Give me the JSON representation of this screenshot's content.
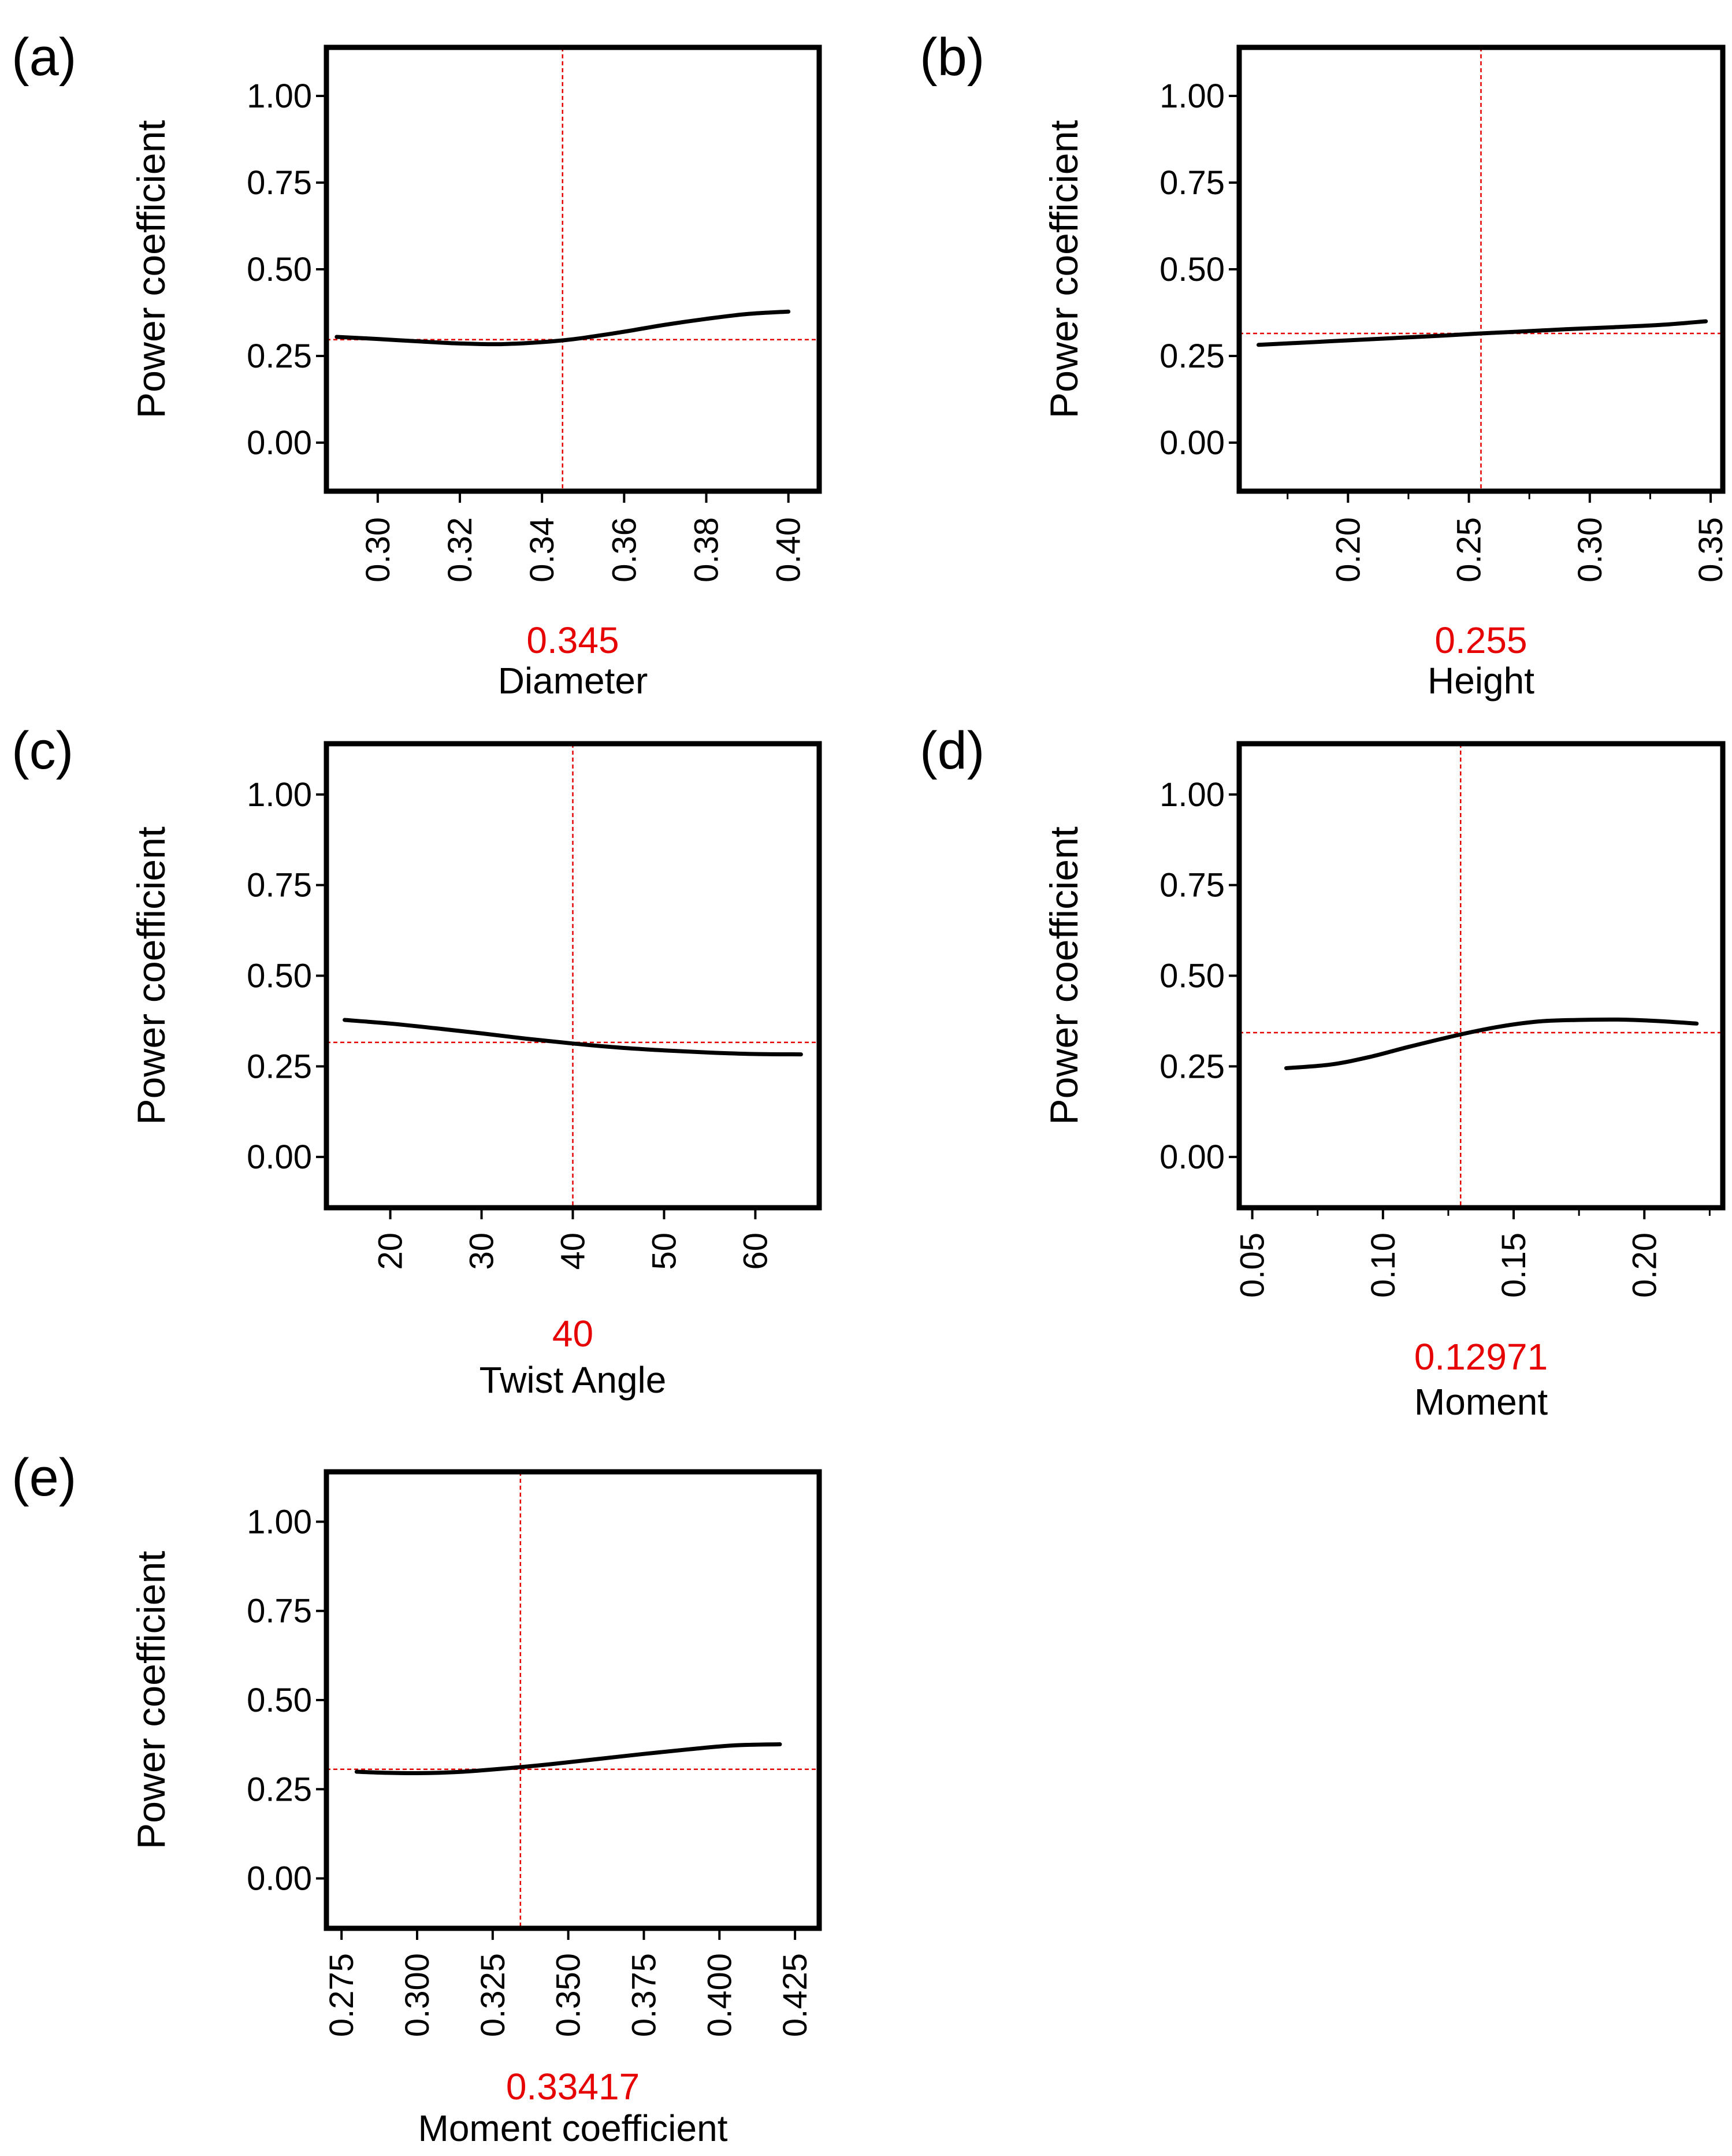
{
  "chart_data": [
    {
      "panel": "(a)",
      "type": "line",
      "ylabel": "Power coefficient",
      "xlabel": "Diameter",
      "xvalue_label": "0.345",
      "xlim": [
        0.2875,
        0.4075
      ],
      "ylim": [
        -0.14,
        1.14
      ],
      "xticks": [
        0.3,
        0.32,
        0.34,
        0.36,
        0.38,
        0.4
      ],
      "xtick_labels": [
        "0.30",
        "0.32",
        "0.34",
        "0.36",
        "0.38",
        "0.40"
      ],
      "yticks": [
        0.0,
        0.25,
        0.5,
        0.75,
        1.0
      ],
      "ytick_labels": [
        "0.00",
        "0.25",
        "0.50",
        "0.75",
        "1.00"
      ],
      "x": [
        0.29,
        0.3,
        0.31,
        0.32,
        0.33,
        0.34,
        0.345,
        0.35,
        0.36,
        0.37,
        0.38,
        0.39,
        0.4
      ],
      "y": [
        0.305,
        0.299,
        0.292,
        0.286,
        0.284,
        0.29,
        0.295,
        0.302,
        0.32,
        0.34,
        0.357,
        0.371,
        0.378
      ],
      "ref_x": 0.345,
      "ref_y": 0.297
    },
    {
      "panel": "(b)",
      "type": "line",
      "ylabel": "Power coefficient",
      "xlabel": "Height",
      "xvalue_label": "0.255",
      "xlim": [
        0.155,
        0.355
      ],
      "ylim": [
        -0.14,
        1.14
      ],
      "xticks": [
        0.2,
        0.25,
        0.3,
        0.35
      ],
      "xtick_labels": [
        "0.20",
        "0.25",
        "0.30",
        "0.35"
      ],
      "minor_xticks": [
        0.175,
        0.225,
        0.275,
        0.325
      ],
      "yticks": [
        0.0,
        0.25,
        0.5,
        0.75,
        1.0
      ],
      "ytick_labels": [
        "0.00",
        "0.25",
        "0.50",
        "0.75",
        "1.00"
      ],
      "x": [
        0.163,
        0.18,
        0.2,
        0.22,
        0.24,
        0.255,
        0.27,
        0.29,
        0.31,
        0.33,
        0.348
      ],
      "y": [
        0.282,
        0.288,
        0.295,
        0.302,
        0.309,
        0.315,
        0.32,
        0.327,
        0.333,
        0.34,
        0.35
      ],
      "ref_x": 0.255,
      "ref_y": 0.315
    },
    {
      "panel": "(c)",
      "type": "line",
      "ylabel": "Power coefficient",
      "xlabel": "Twist Angle",
      "xvalue_label": "40",
      "xlim": [
        13,
        67
      ],
      "ylim": [
        -0.14,
        1.14
      ],
      "xticks": [
        20,
        30,
        40,
        50,
        60
      ],
      "xtick_labels": [
        "20",
        "30",
        "40",
        "50",
        "60"
      ],
      "yticks": [
        0.0,
        0.25,
        0.5,
        0.75,
        1.0
      ],
      "ytick_labels": [
        "0.00",
        "0.25",
        "0.50",
        "0.75",
        "1.00"
      ],
      "x": [
        15,
        20,
        25,
        30,
        35,
        40,
        45,
        50,
        55,
        60,
        65
      ],
      "y": [
        0.378,
        0.368,
        0.355,
        0.341,
        0.326,
        0.313,
        0.302,
        0.294,
        0.288,
        0.284,
        0.283
      ],
      "ref_x": 40,
      "ref_y": 0.316
    },
    {
      "panel": "(d)",
      "type": "line",
      "ylabel": "Power coefficient",
      "xlabel": "Moment",
      "xvalue_label": "0.12971",
      "xlim": [
        0.045,
        0.23
      ],
      "ylim": [
        -0.14,
        1.14
      ],
      "xticks": [
        0.05,
        0.1,
        0.15,
        0.2
      ],
      "xtick_labels": [
        "0.05",
        "0.10",
        "0.15",
        "0.20"
      ],
      "minor_xticks": [
        0.075,
        0.125,
        0.175,
        0.225
      ],
      "yticks": [
        0.0,
        0.25,
        0.5,
        0.75,
        1.0
      ],
      "ytick_labels": [
        "0.00",
        "0.25",
        "0.50",
        "0.75",
        "1.00"
      ],
      "x": [
        0.063,
        0.08,
        0.095,
        0.11,
        0.12971,
        0.145,
        0.16,
        0.175,
        0.19,
        0.205,
        0.22
      ],
      "y": [
        0.245,
        0.255,
        0.276,
        0.304,
        0.338,
        0.36,
        0.374,
        0.378,
        0.379,
        0.375,
        0.368
      ],
      "ref_x": 0.12971,
      "ref_y": 0.343
    },
    {
      "panel": "(e)",
      "type": "line",
      "ylabel": "Power coefficient",
      "xlabel": "Moment coefficient",
      "xvalue_label": "0.33417",
      "xlim": [
        0.27,
        0.433
      ],
      "ylim": [
        -0.14,
        1.14
      ],
      "xticks": [
        0.275,
        0.3,
        0.325,
        0.35,
        0.375,
        0.4,
        0.425
      ],
      "xtick_labels": [
        "0.275",
        "0.300",
        "0.325",
        "0.350",
        "0.375",
        "0.400",
        "0.425"
      ],
      "yticks": [
        0.0,
        0.25,
        0.5,
        0.75,
        1.0
      ],
      "ytick_labels": [
        "0.00",
        "0.25",
        "0.50",
        "0.75",
        "1.00"
      ],
      "x": [
        0.28,
        0.29,
        0.3,
        0.31,
        0.32,
        0.33417,
        0.345,
        0.36,
        0.375,
        0.39,
        0.405,
        0.42
      ],
      "y": [
        0.299,
        0.296,
        0.295,
        0.297,
        0.302,
        0.312,
        0.321,
        0.335,
        0.349,
        0.362,
        0.373,
        0.376
      ],
      "ref_x": 0.33417,
      "ref_y": 0.306
    }
  ]
}
